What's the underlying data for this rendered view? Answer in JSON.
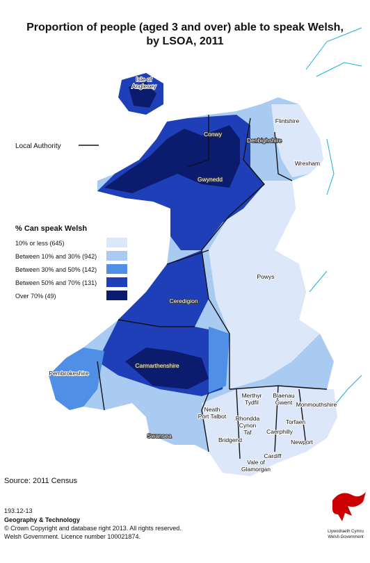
{
  "title": [
    "Proportion of people (aged 3 and over) able to speak Welsh,",
    "by LSOA, 2011"
  ],
  "annotation": "Local Authority",
  "legend": {
    "title": "% Can speak Welsh",
    "items": [
      {
        "label": "10% or less (645)",
        "color": "#dce8f9"
      },
      {
        "label": "Between 10% and 30% (942)",
        "color": "#a9cbf1"
      },
      {
        "label": "Between 30% and 50% (142)",
        "color": "#4f8fe6"
      },
      {
        "label": "Between 50% and 70% (131)",
        "color": "#1f3fb8"
      },
      {
        "label": "Over 70% (49)",
        "color": "#0b1c6e"
      }
    ]
  },
  "regions": [
    [
      "Isle of",
      "Anglesey"
    ],
    [
      "Conwy"
    ],
    [
      "Denbighshire"
    ],
    [
      "Flintshire"
    ],
    [
      "Wrexham"
    ],
    [
      "Gwynedd"
    ],
    [
      "Powys"
    ],
    [
      "Ceredigion"
    ],
    [
      "Pembrokeshire"
    ],
    [
      "Carmarthenshire"
    ],
    [
      "Merthyr",
      "Tydfil"
    ],
    [
      "Blaenau",
      "Gwent"
    ],
    [
      "Monmouthshire"
    ],
    [
      "Neath",
      "Port Talbot"
    ],
    [
      "Rhondda",
      "Cynon",
      "Taf"
    ],
    [
      "Torfaen"
    ],
    [
      "Caerphilly"
    ],
    [
      "Newport"
    ],
    [
      "Bridgend"
    ],
    [
      "Cardiff"
    ],
    [
      "Vale of",
      "Glamorgan"
    ],
    [
      "Swansea"
    ]
  ],
  "source": "Source: 2011 Census",
  "footer": [
    "193.12-13",
    "Geography & Technology",
    "© Crown Copyright and database right 2013. All rights reserved.",
    "Welsh Government. Licence number 100021874."
  ],
  "logo": [
    "Llywodraeth Cymru",
    "Welsh Government"
  ]
}
